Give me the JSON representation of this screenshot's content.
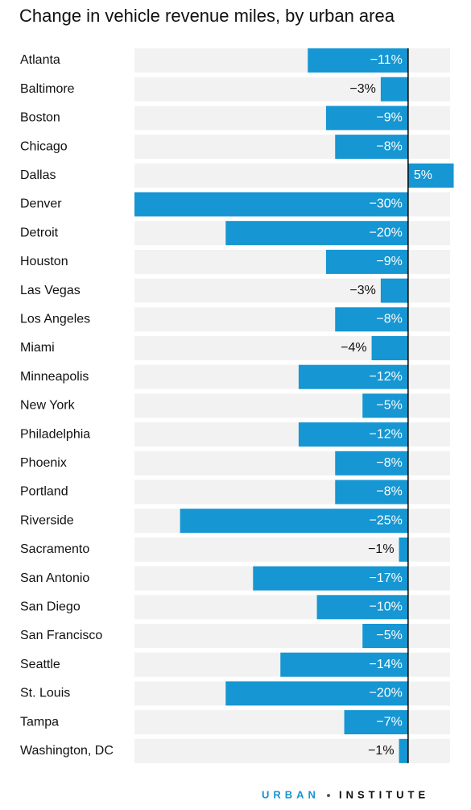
{
  "chart_data": {
    "type": "hbar",
    "title": "Change in vehicle revenue miles, by urban area",
    "categories": [
      "Atlanta",
      "Baltimore",
      "Boston",
      "Chicago",
      "Dallas",
      "Denver",
      "Detroit",
      "Houston",
      "Las Vegas",
      "Los Angeles",
      "Miami",
      "Minneapolis",
      "New York",
      "Philadelphia",
      "Phoenix",
      "Portland",
      "Riverside",
      "Sacramento",
      "San Antonio",
      "San Diego",
      "San Francisco",
      "Seattle",
      "St. Louis",
      "Tampa",
      "Washington, DC"
    ],
    "values": [
      -11,
      -3,
      -9,
      -8,
      5,
      -30,
      -20,
      -9,
      -3,
      -8,
      -4,
      -12,
      -5,
      -12,
      -8,
      -8,
      -25,
      -1,
      -17,
      -10,
      -5,
      -14,
      -20,
      -7,
      -1
    ],
    "value_labels": [
      "−11%",
      "−3%",
      "−9%",
      "−8%",
      "5%",
      "−30%",
      "−20%",
      "−9%",
      "−3%",
      "−8%",
      "−4%",
      "−12%",
      "−5%",
      "−12%",
      "−8%",
      "−8%",
      "−25%",
      "−1%",
      "−17%",
      "−10%",
      "−5%",
      "−14%",
      "−20%",
      "−7%",
      "−1%"
    ],
    "color": "#1696d2",
    "band_color": "#f2f2f2",
    "xlim": [
      -30,
      4.6
    ]
  },
  "footer": {
    "brand_left": "URBAN",
    "brand_right": "INSTITUTE"
  }
}
